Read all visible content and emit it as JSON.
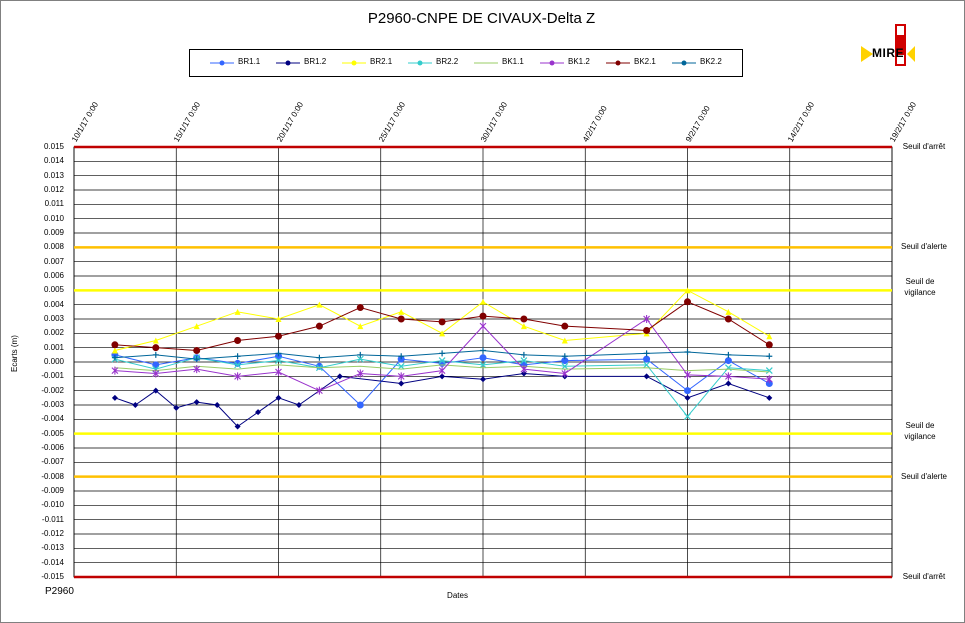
{
  "chart_data": {
    "type": "scatter",
    "title": "P2960-CNPE DE CIVAUX-Delta Z",
    "xlabel": "Dates",
    "ylabel": "Ecarts (m)",
    "footer": "P2960",
    "x_ticks": [
      "10/1/17 0:00",
      "15/1/17 0:00",
      "20/1/17 0:00",
      "25/1/17 0:00",
      "30/1/17 0:00",
      "4/2/17 0:00",
      "9/2/17 0:00",
      "14/2/17 0:00",
      "19/2/17 0:00"
    ],
    "y_ticks": [
      "0.015",
      "0.014",
      "0.013",
      "0.012",
      "0.011",
      "0.010",
      "0.009",
      "0.008",
      "0.007",
      "0.006",
      "0.005",
      "0.004",
      "0.003",
      "0.002",
      "0.001",
      "0.000",
      "-0.001",
      "-0.002",
      "-0.003",
      "-0.004",
      "-0.005",
      "-0.006",
      "-0.007",
      "-0.008",
      "-0.009",
      "-0.010",
      "-0.011",
      "-0.012",
      "-0.013",
      "-0.014",
      "-0.015"
    ],
    "ylim": [
      -0.015,
      0.015
    ],
    "grid": true,
    "legend_position": "top",
    "thresholds": [
      {
        "label": "Seuil d'arrêt",
        "value": 0.015,
        "color": "#c00000"
      },
      {
        "label": "Seuil d'alerte",
        "value": 0.008,
        "color": "#ffc000"
      },
      {
        "label": "Seuil de vigilance",
        "value": 0.005,
        "color": "#ffff00"
      },
      {
        "label": "Seuil de vigilance",
        "value": -0.005,
        "color": "#ffff00"
      },
      {
        "label": "Seuil d'alerte",
        "value": -0.008,
        "color": "#ffc000"
      },
      {
        "label": "Seuil d'arrêt",
        "value": -0.015,
        "color": "#c00000"
      }
    ],
    "series": [
      {
        "name": "BR1.1",
        "color": "#3366ff",
        "marker": "circle",
        "points": [
          [
            "12/1/17 0:00",
            0.0005
          ],
          [
            "14/1/17 0:00",
            -0.0002
          ],
          [
            "16/1/17 0:00",
            0.0003
          ],
          [
            "18/1/17 0:00",
            -0.0001
          ],
          [
            "20/1/17 0:00",
            0.0004
          ],
          [
            "22/1/17 0:00",
            -0.0003
          ],
          [
            "24/1/17 0:00",
            -0.003
          ],
          [
            "26/1/17 0:00",
            0.0002
          ],
          [
            "28/1/17 0:00",
            -0.0001
          ],
          [
            "30/1/17 0:00",
            0.0003
          ],
          [
            "1/2/17 0:00",
            -0.0002
          ],
          [
            "3/2/17 0:00",
            0.0001
          ],
          [
            "7/2/17 0:00",
            0.0002
          ],
          [
            "9/2/17 0:00",
            -0.002
          ],
          [
            "11/2/17 0:00",
            0.0001
          ],
          [
            "13/2/17 0:00",
            -0.0015
          ]
        ]
      },
      {
        "name": "BR1.2",
        "color": "#000080",
        "marker": "diamond",
        "points": [
          [
            "12/1/17 0:00",
            -0.0025
          ],
          [
            "13/1/17 0:00",
            -0.003
          ],
          [
            "14/1/17 0:00",
            -0.002
          ],
          [
            "15/1/17 0:00",
            -0.0032
          ],
          [
            "16/1/17 0:00",
            -0.0028
          ],
          [
            "17/1/17 0:00",
            -0.003
          ],
          [
            "18/1/17 0:00",
            -0.0045
          ],
          [
            "19/1/17 0:00",
            -0.0035
          ],
          [
            "20/1/17 0:00",
            -0.0025
          ],
          [
            "21/1/17 0:00",
            -0.003
          ],
          [
            "23/1/17 0:00",
            -0.001
          ],
          [
            "26/1/17 0:00",
            -0.0015
          ],
          [
            "28/1/17 0:00",
            -0.001
          ],
          [
            "30/1/17 0:00",
            -0.0012
          ],
          [
            "1/2/17 0:00",
            -0.0008
          ],
          [
            "3/2/17 0:00",
            -0.001
          ],
          [
            "7/2/17 0:00",
            -0.001
          ],
          [
            "9/2/17 0:00",
            -0.0025
          ],
          [
            "11/2/17 0:00",
            -0.0015
          ],
          [
            "13/2/17 0:00",
            -0.0025
          ]
        ]
      },
      {
        "name": "BR2.1",
        "color": "#ffff00",
        "marker": "triangle",
        "points": [
          [
            "12/1/17 0:00",
            0.0008
          ],
          [
            "14/1/17 0:00",
            0.0015
          ],
          [
            "16/1/17 0:00",
            0.0025
          ],
          [
            "18/1/17 0:00",
            0.0035
          ],
          [
            "20/1/17 0:00",
            0.003
          ],
          [
            "22/1/17 0:00",
            0.004
          ],
          [
            "24/1/17 0:00",
            0.0025
          ],
          [
            "26/1/17 0:00",
            0.0035
          ],
          [
            "28/1/17 0:00",
            0.002
          ],
          [
            "30/1/17 0:00",
            0.0042
          ],
          [
            "1/2/17 0:00",
            0.0025
          ],
          [
            "3/2/17 0:00",
            0.0015
          ],
          [
            "7/2/17 0:00",
            0.002
          ],
          [
            "9/2/17 0:00",
            0.005
          ],
          [
            "11/2/17 0:00",
            0.0035
          ],
          [
            "13/2/17 0:00",
            0.0018
          ]
        ]
      },
      {
        "name": "BR2.2",
        "color": "#33cccc",
        "marker": "cross",
        "points": [
          [
            "12/1/17 0:00",
            0.0002
          ],
          [
            "14/1/17 0:00",
            -0.0005
          ],
          [
            "16/1/17 0:00",
            0.0003
          ],
          [
            "18/1/17 0:00",
            -0.0002
          ],
          [
            "20/1/17 0:00",
            0.0001
          ],
          [
            "22/1/17 0:00",
            -0.0004
          ],
          [
            "24/1/17 0:00",
            0.0002
          ],
          [
            "26/1/17 0:00",
            -0.0003
          ],
          [
            "28/1/17 0:00",
            0.0001
          ],
          [
            "30/1/17 0:00",
            -0.0002
          ],
          [
            "1/2/17 0:00",
            0.0001
          ],
          [
            "3/2/17 0:00",
            -0.0003
          ],
          [
            "7/2/17 0:00",
            -0.0002
          ],
          [
            "9/2/17 0:00",
            -0.0038
          ],
          [
            "11/2/17 0:00",
            -0.0004
          ],
          [
            "13/2/17 0:00",
            -0.0006
          ]
        ]
      },
      {
        "name": "BK1.1",
        "color": "#99cc66",
        "marker": "none",
        "points": [
          [
            "12/1/17 0:00",
            -0.0004
          ],
          [
            "14/1/17 0:00",
            -0.0006
          ],
          [
            "16/1/17 0:00",
            -0.0003
          ],
          [
            "18/1/17 0:00",
            -0.0005
          ],
          [
            "20/1/17 0:00",
            -0.0002
          ],
          [
            "22/1/17 0:00",
            -0.0004
          ],
          [
            "24/1/17 0:00",
            -0.0003
          ],
          [
            "26/1/17 0:00",
            -0.0005
          ],
          [
            "28/1/17 0:00",
            -0.0002
          ],
          [
            "30/1/17 0:00",
            -0.0004
          ],
          [
            "1/2/17 0:00",
            -0.0003
          ],
          [
            "3/2/17 0:00",
            -0.0005
          ],
          [
            "7/2/17 0:00",
            -0.0004
          ],
          [
            "9/2/17 0:00",
            -0.0006
          ],
          [
            "11/2/17 0:00",
            -0.0005
          ],
          [
            "13/2/17 0:00",
            -0.0007
          ]
        ]
      },
      {
        "name": "BK1.2",
        "color": "#9933cc",
        "marker": "star",
        "points": [
          [
            "12/1/17 0:00",
            -0.0006
          ],
          [
            "14/1/17 0:00",
            -0.0008
          ],
          [
            "16/1/17 0:00",
            -0.0005
          ],
          [
            "18/1/17 0:00",
            -0.001
          ],
          [
            "20/1/17 0:00",
            -0.0007
          ],
          [
            "22/1/17 0:00",
            -0.002
          ],
          [
            "24/1/17 0:00",
            -0.0008
          ],
          [
            "26/1/17 0:00",
            -0.001
          ],
          [
            "28/1/17 0:00",
            -0.0006
          ],
          [
            "30/1/17 0:00",
            0.0025
          ],
          [
            "1/2/17 0:00",
            -0.0005
          ],
          [
            "3/2/17 0:00",
            -0.0008
          ],
          [
            "7/2/17 0:00",
            0.003
          ],
          [
            "9/2/17 0:00",
            -0.0009
          ],
          [
            "11/2/17 0:00",
            -0.001
          ],
          [
            "13/2/17 0:00",
            -0.0012
          ]
        ]
      },
      {
        "name": "BK2.1",
        "color": "#800000",
        "marker": "circle",
        "points": [
          [
            "12/1/17 0:00",
            0.0012
          ],
          [
            "14/1/17 0:00",
            0.001
          ],
          [
            "16/1/17 0:00",
            0.0008
          ],
          [
            "18/1/17 0:00",
            0.0015
          ],
          [
            "20/1/17 0:00",
            0.0018
          ],
          [
            "22/1/17 0:00",
            0.0025
          ],
          [
            "24/1/17 0:00",
            0.0038
          ],
          [
            "26/1/17 0:00",
            0.003
          ],
          [
            "28/1/17 0:00",
            0.0028
          ],
          [
            "30/1/17 0:00",
            0.0032
          ],
          [
            "1/2/17 0:00",
            0.003
          ],
          [
            "3/2/17 0:00",
            0.0025
          ],
          [
            "7/2/17 0:00",
            0.0022
          ],
          [
            "9/2/17 0:00",
            0.0042
          ],
          [
            "11/2/17 0:00",
            0.003
          ],
          [
            "13/2/17 0:00",
            0.0012
          ]
        ]
      },
      {
        "name": "BK2.2",
        "color": "#006699",
        "marker": "plus",
        "points": [
          [
            "12/1/17 0:00",
            0.0003
          ],
          [
            "14/1/17 0:00",
            0.0005
          ],
          [
            "16/1/17 0:00",
            0.0002
          ],
          [
            "18/1/17 0:00",
            0.0004
          ],
          [
            "20/1/17 0:00",
            0.0006
          ],
          [
            "22/1/17 0:00",
            0.0003
          ],
          [
            "24/1/17 0:00",
            0.0005
          ],
          [
            "26/1/17 0:00",
            0.0004
          ],
          [
            "28/1/17 0:00",
            0.0006
          ],
          [
            "30/1/17 0:00",
            0.0008
          ],
          [
            "1/2/17 0:00",
            0.0005
          ],
          [
            "3/2/17 0:00",
            0.0004
          ],
          [
            "7/2/17 0:00",
            0.0006
          ],
          [
            "9/2/17 0:00",
            0.0007
          ],
          [
            "11/2/17 0:00",
            0.0005
          ],
          [
            "13/2/17 0:00",
            0.0004
          ]
        ]
      }
    ]
  },
  "logo": {
    "text": "MIRE"
  }
}
